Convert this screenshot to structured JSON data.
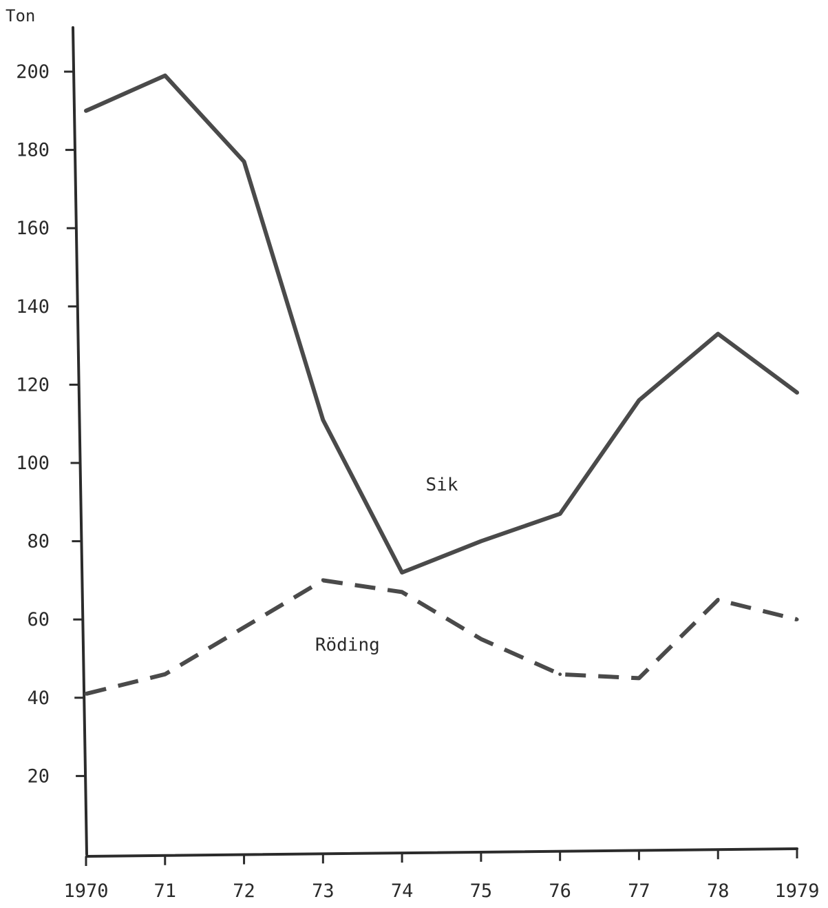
{
  "chart_data": {
    "type": "line",
    "ylabel": "Ton",
    "xlabel": "",
    "x": [
      1970,
      1971,
      1972,
      1973,
      1974,
      1975,
      1976,
      1977,
      1978,
      1979
    ],
    "x_tick_labels": [
      "1970",
      "71",
      "72",
      "73",
      "74",
      "75",
      "76",
      "77",
      "78",
      "1979"
    ],
    "y_ticks": [
      20,
      40,
      60,
      80,
      100,
      120,
      140,
      160,
      180,
      200
    ],
    "ylim": [
      0,
      210
    ],
    "grid": false,
    "series": [
      {
        "name": "Sik",
        "style": "solid",
        "color": "#4a4a4a",
        "values": [
          190,
          199,
          177,
          111,
          72,
          80,
          87,
          116,
          133,
          118
        ]
      },
      {
        "name": "Röding",
        "style": "dashed",
        "color": "#4a4a4a",
        "values": [
          41,
          46,
          58,
          70,
          67,
          55,
          46,
          45,
          65,
          60
        ]
      }
    ]
  }
}
